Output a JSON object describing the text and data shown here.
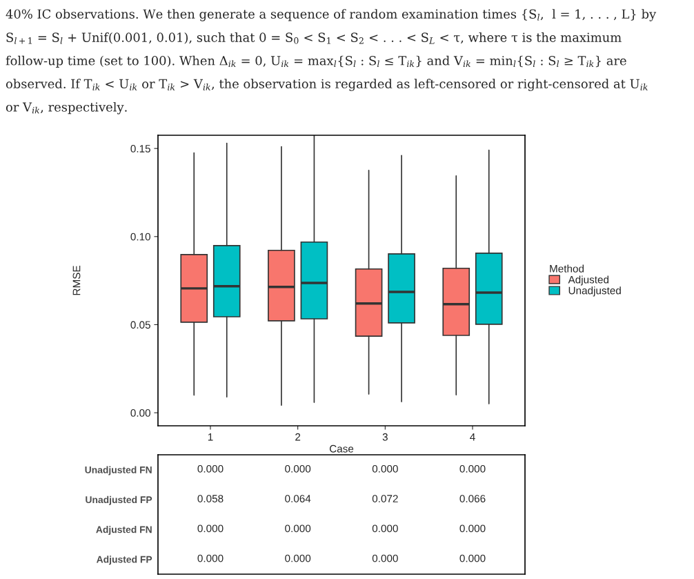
{
  "chart_data": [
    {
      "type": "box",
      "categories": [
        "1",
        "2",
        "3",
        "4"
      ],
      "xlabel": "Case",
      "ylabel": "RMSE",
      "legend_title": "Method",
      "legend": "right",
      "grid": false,
      "ylim": [
        -0.0074,
        0.1575
      ],
      "yticks": [
        {
          "value": 0,
          "label": "0.00"
        },
        {
          "value": 0.05,
          "label": "0.05"
        },
        {
          "value": 0.1,
          "label": "0.10"
        },
        {
          "value": 0.15,
          "label": "0.15"
        }
      ],
      "series": [
        {
          "name": "Adjusted",
          "color": "#f8766d",
          "boxes": [
            {
              "low": 0.01,
              "q1": 0.0514,
              "median": 0.0706,
              "q3": 0.0898,
              "high": 0.1475
            },
            {
              "low": 0.0043,
              "q1": 0.0522,
              "median": 0.0714,
              "q3": 0.0922,
              "high": 0.151
            },
            {
              "low": 0.0106,
              "q1": 0.0435,
              "median": 0.062,
              "q3": 0.0816,
              "high": 0.1376
            },
            {
              "low": 0.0102,
              "q1": 0.0439,
              "median": 0.0616,
              "q3": 0.082,
              "high": 0.1345
            }
          ]
        },
        {
          "name": "Unadjusted",
          "color": "#00bfc4",
          "boxes": [
            {
              "low": 0.009,
              "q1": 0.0545,
              "median": 0.0718,
              "q3": 0.0949,
              "high": 0.153
            },
            {
              "low": 0.0059,
              "q1": 0.0533,
              "median": 0.0737,
              "q3": 0.0969,
              "high": 0.1575
            },
            {
              "low": 0.0063,
              "q1": 0.051,
              "median": 0.0686,
              "q3": 0.0902,
              "high": 0.146
            },
            {
              "low": 0.0051,
              "q1": 0.0502,
              "median": 0.0682,
              "q3": 0.0906,
              "high": 0.149
            }
          ]
        }
      ],
      "annotations": [
        "40% IC observations. We then generate a sequence of random examination times {S$_{l}$,  l = 1, . . . , L} by",
        "S$_{l+1}$ = S$_{l}$ + Unif(0.001, 0.01), such that 0 = S$_{0}$ < S$_{1}$ < S$_{2}$ < . . . < S$_{L}$ < τ, where τ is the maximum",
        "follow-up time (set to 100). When Δ$_{ik}$ = 0, U$_{ik}$ = max$_{l}${S$_{l}$ : S$_{l}$ ≤ T$_{ik}$} and V$_{ik}$ = min$_{l}${S$_{l}$ : S$_{l}$ ≥ T$_{ik}$} are",
        "observed. If T$_{ik}$ < U$_{ik}$ or T$_{ik}$ > V$_{ik}$, the observation is regarded as left-censored or right-censored at U$_{ik}$",
        "or V$_{ik}$, respectively."
      ]
    },
    {
      "type": "heatmap",
      "categories": [
        null,
        null,
        null,
        null
      ],
      "y_categories": [
        "Unadjusted FN",
        "Unadjusted FP",
        "Adjusted FN",
        "Adjusted FP"
      ],
      "tick_labels": "y",
      "cells": [
        [
          null,
          null,
          null,
          null
        ],
        [
          null,
          null,
          null,
          null
        ],
        [
          null,
          null,
          null,
          null
        ],
        [
          null,
          null,
          null,
          null
        ]
      ],
      "cell_labels": [
        [
          "0.000",
          "0.000",
          "0.000",
          "0.000"
        ],
        [
          "0.058",
          "0.064",
          "0.072",
          "0.066"
        ],
        [
          "0.000",
          "0.000",
          "0.000",
          "0.000"
        ],
        [
          "0.000",
          "0.000",
          "0.000",
          "0.000"
        ]
      ]
    }
  ]
}
